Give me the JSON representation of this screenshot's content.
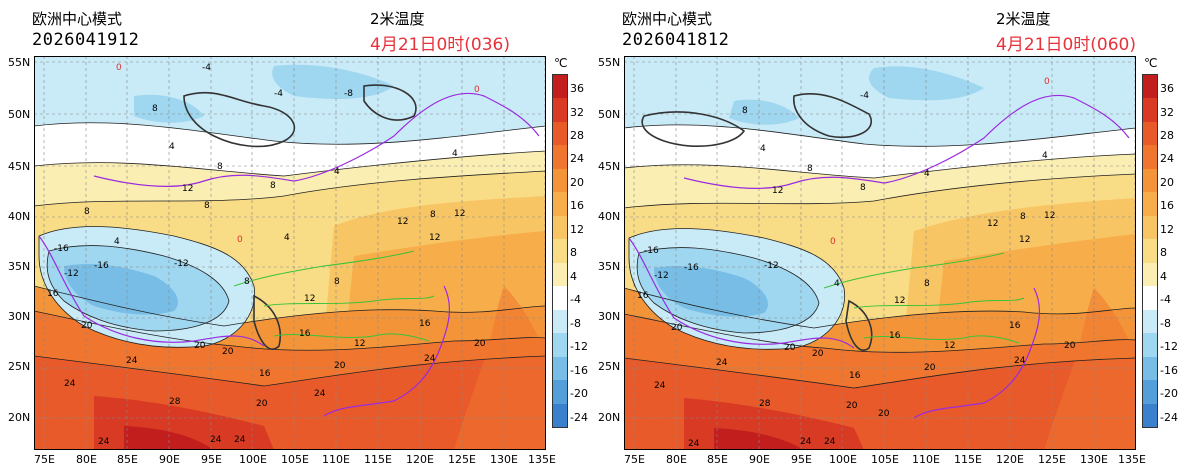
{
  "panels": [
    {
      "model": "欧洲中心模式",
      "run": "2026041912",
      "variable": "2米温度",
      "valid": "4月21日0时(036)"
    },
    {
      "model": "欧洲中心模式",
      "run": "2026041812",
      "variable": "2米温度",
      "valid": "4月21日0时(060)"
    }
  ],
  "lat_labels": [
    "55N",
    "50N",
    "45N",
    "40N",
    "35N",
    "30N",
    "25N",
    "20N"
  ],
  "lon_labels": [
    "75E",
    "80E",
    "85E",
    "90E",
    "95E",
    "100E",
    "105E",
    "110E",
    "115E",
    "120E",
    "125E",
    "130E",
    "135E"
  ],
  "colorbar": {
    "unit": "℃",
    "ticks": [
      "36",
      "32",
      "28",
      "24",
      "20",
      "16",
      "12",
      "8",
      "4",
      "-4",
      "-8",
      "-12",
      "-16",
      "-20",
      "-24"
    ],
    "colors": [
      "#c21e1e",
      "#d83a24",
      "#e85a2a",
      "#f0752e",
      "#f49438",
      "#f7ad4a",
      "#f8c564",
      "#f9dc86",
      "#fbeeb2",
      "#ffffff",
      "#c9ebf8",
      "#9fd6f0",
      "#78bde6",
      "#549fda",
      "#3a80cc"
    ]
  },
  "contour_labels_left": [
    "-4",
    "-4",
    "8",
    "8",
    "4",
    "8",
    "4",
    "4",
    "-8",
    "12",
    "8",
    "8",
    "4",
    "8",
    "12",
    "12",
    "12",
    "4",
    "8",
    "-12",
    "-16",
    "-12",
    "-16",
    "16",
    "20",
    "20",
    "24",
    "24",
    "24",
    "28",
    "24",
    "24",
    "24",
    "20",
    "16",
    "12",
    "16",
    "20",
    "16",
    "20",
    "24",
    "20",
    "12",
    "8"
  ],
  "contour_labels_right": [
    "-4",
    "4",
    "8",
    "8",
    "4",
    "8",
    "4",
    "12",
    "8",
    "12",
    "12",
    "12",
    "-12",
    "-16",
    "-12",
    "-16",
    "16",
    "20",
    "20",
    "24",
    "24",
    "24",
    "28",
    "24",
    "24",
    "20",
    "16",
    "12",
    "16",
    "20",
    "16",
    "20",
    "24",
    "20",
    "20",
    "12",
    "8",
    "4"
  ]
}
